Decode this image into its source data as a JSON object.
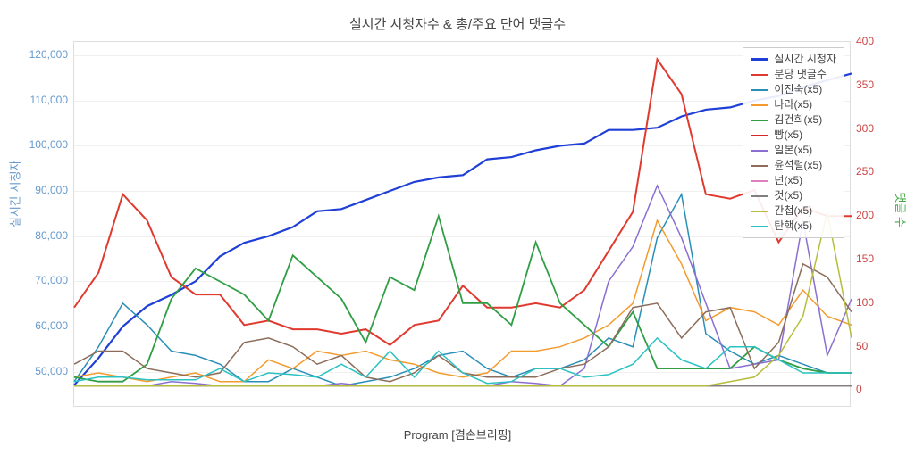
{
  "chart": {
    "title": "실시간 시청자수 & 총/주요 단어 댓글수",
    "x_label": "Program [겸손브리핑]",
    "y_left_label": "실시간 시청자",
    "y_right_label": "댓글 수",
    "title_fontsize": 15,
    "label_fontsize": 13,
    "tick_fontsize": 12,
    "background_color": "#ffffff",
    "grid_color": "#f0f0f0",
    "border_color": "#dddddd",
    "y_left": {
      "min": 42000,
      "max": 123000,
      "ticks": [
        50000,
        60000,
        70000,
        80000,
        90000,
        100000,
        110000,
        120000
      ],
      "tick_labels": [
        "50,000",
        "60,000",
        "70,000",
        "80,000",
        "90,000",
        "100,000",
        "110,000",
        "120,000"
      ],
      "color": "#6699cc"
    },
    "y_right": {
      "min": -20,
      "max": 400,
      "ticks": [
        0,
        50,
        100,
        150,
        200,
        250,
        300,
        350,
        400
      ],
      "tick_labels": [
        "0",
        "50",
        "100",
        "150",
        "200",
        "250",
        "300",
        "350",
        "400"
      ],
      "color": "#cc4444"
    },
    "x_count": 33,
    "series": [
      {
        "name": "실시간 시청자",
        "color": "#1f3fd6",
        "width": 2.2,
        "axis": "left",
        "values": [
          47000,
          53000,
          60000,
          64500,
          67000,
          70000,
          75500,
          78500,
          80000,
          82000,
          85500,
          86000,
          88000,
          90000,
          92000,
          93000,
          93500,
          97000,
          97500,
          99000,
          100000,
          100500,
          103500,
          103500,
          104000,
          106500,
          108000,
          108500,
          110000,
          111000,
          113000,
          114500,
          116000
        ]
      },
      {
        "name": "분당 댓글수",
        "color": "#e03a2f",
        "width": 2.0,
        "axis": "right",
        "values": [
          95,
          135,
          225,
          195,
          130,
          110,
          110,
          75,
          80,
          70,
          70,
          65,
          70,
          52,
          75,
          80,
          120,
          95,
          95,
          100,
          95,
          115,
          160,
          205,
          380,
          340,
          225,
          220,
          230,
          170,
          210,
          200,
          200
        ]
      },
      {
        "name": "이진숙(x5)",
        "color": "#2a8fb7",
        "width": 1.5,
        "axis": "right",
        "values": [
          10,
          50,
          100,
          75,
          45,
          40,
          30,
          10,
          10,
          25,
          15,
          5,
          10,
          15,
          25,
          40,
          45,
          25,
          15,
          25,
          25,
          35,
          60,
          50,
          175,
          225,
          65,
          45,
          30,
          40,
          30,
          20,
          20
        ]
      },
      {
        "name": "나라(x5)",
        "color": "#f49b2e",
        "width": 1.5,
        "axis": "right",
        "values": [
          15,
          20,
          15,
          10,
          15,
          20,
          10,
          10,
          35,
          25,
          45,
          40,
          45,
          35,
          30,
          20,
          15,
          20,
          45,
          45,
          50,
          60,
          75,
          100,
          195,
          145,
          80,
          95,
          90,
          75,
          115,
          85,
          75
        ]
      },
      {
        "name": "김건희(x5)",
        "color": "#2f9e44",
        "width": 1.8,
        "axis": "right",
        "values": [
          15,
          10,
          10,
          30,
          105,
          140,
          125,
          110,
          80,
          155,
          130,
          105,
          55,
          130,
          115,
          200,
          100,
          100,
          75,
          170,
          100,
          75,
          50,
          90,
          25,
          25,
          25,
          25,
          50,
          35,
          25,
          20,
          20
        ]
      },
      {
        "name": "빵(x5)",
        "color": "#d62728",
        "width": 1.5,
        "axis": "right",
        "values": [
          5,
          5,
          5,
          5,
          5,
          5,
          5,
          5,
          5,
          5,
          5,
          5,
          5,
          5,
          5,
          5,
          5,
          5,
          5,
          5,
          5,
          5,
          5,
          5,
          5,
          5,
          5,
          5,
          5,
          5,
          5,
          5,
          5
        ]
      },
      {
        "name": "일본(x5)",
        "color": "#8a6fd1",
        "width": 1.5,
        "axis": "right",
        "values": [
          5,
          5,
          5,
          5,
          10,
          8,
          5,
          5,
          5,
          5,
          5,
          8,
          5,
          5,
          5,
          5,
          5,
          5,
          10,
          8,
          5,
          25,
          125,
          165,
          235,
          175,
          100,
          25,
          30,
          35,
          195,
          40,
          105
        ]
      },
      {
        "name": "윤석렬(x5)",
        "color": "#8c6d5b",
        "width": 1.5,
        "axis": "right",
        "values": [
          30,
          45,
          45,
          25,
          20,
          15,
          20,
          55,
          60,
          50,
          30,
          40,
          15,
          10,
          20,
          40,
          20,
          15,
          15,
          15,
          25,
          30,
          50,
          95,
          100,
          60,
          90,
          95,
          25,
          55,
          145,
          130,
          90
        ]
      },
      {
        "name": "넌(x5)",
        "color": "#df7fbf",
        "width": 1.5,
        "axis": "right",
        "values": [
          5,
          5,
          5,
          5,
          5,
          5,
          5,
          5,
          5,
          5,
          5,
          5,
          5,
          5,
          5,
          5,
          5,
          5,
          5,
          5,
          5,
          5,
          5,
          5,
          5,
          5,
          5,
          5,
          5,
          5,
          5,
          5,
          5
        ]
      },
      {
        "name": "것(x5)",
        "color": "#7f7f7f",
        "width": 1.5,
        "axis": "right",
        "values": [
          5,
          5,
          5,
          5,
          5,
          5,
          5,
          5,
          5,
          5,
          5,
          5,
          5,
          5,
          5,
          5,
          5,
          5,
          5,
          5,
          5,
          5,
          5,
          5,
          5,
          5,
          5,
          5,
          5,
          5,
          5,
          5,
          5
        ]
      },
      {
        "name": "간첩(x5)",
        "color": "#b5bd3a",
        "width": 1.5,
        "axis": "right",
        "values": [
          5,
          5,
          5,
          5,
          5,
          5,
          5,
          5,
          5,
          5,
          5,
          5,
          5,
          5,
          5,
          5,
          5,
          5,
          5,
          5,
          5,
          5,
          5,
          5,
          5,
          5,
          5,
          10,
          15,
          40,
          85,
          205,
          60
        ]
      },
      {
        "name": "탄핵(x5)",
        "color": "#2bc2c2",
        "width": 1.5,
        "axis": "right",
        "values": [
          10,
          15,
          15,
          12,
          12,
          12,
          25,
          10,
          20,
          18,
          15,
          30,
          15,
          45,
          15,
          45,
          20,
          8,
          10,
          25,
          25,
          15,
          18,
          30,
          60,
          35,
          25,
          50,
          50,
          35,
          20,
          20,
          20
        ]
      }
    ]
  }
}
